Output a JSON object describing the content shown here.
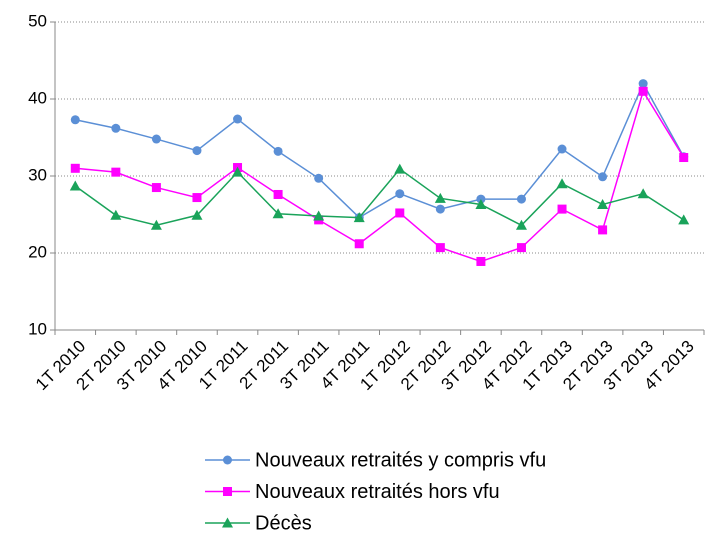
{
  "chart_data": {
    "type": "line",
    "categories": [
      "1T 2010",
      "2T 2010",
      "3T 2010",
      "4T 2010",
      "1T 2011",
      "2T 2011",
      "3T 2011",
      "4T 2011",
      "1T 2012",
      "2T 2012",
      "3T 2012",
      "4T 2012",
      "1T 2013",
      "2T 2013",
      "3T 2013",
      "4T 2013"
    ],
    "series": [
      {
        "name": "Nouveaux retraités y compris vfu",
        "color": "#5b8fd6",
        "marker": "circle",
        "values": [
          37.3,
          36.2,
          34.8,
          33.3,
          37.4,
          33.2,
          29.7,
          24.6,
          27.7,
          25.7,
          27.0,
          27.0,
          33.5,
          29.9,
          42.0,
          32.5
        ]
      },
      {
        "name": "Nouveaux retraités hors vfu",
        "color": "#ff00ff",
        "marker": "square",
        "values": [
          31.0,
          30.5,
          28.5,
          27.2,
          31.1,
          27.6,
          24.3,
          21.2,
          25.2,
          20.7,
          18.9,
          20.7,
          25.7,
          23.0,
          41.0,
          32.4
        ]
      },
      {
        "name": "Décès",
        "color": "#1aa35a",
        "marker": "triangle",
        "values": [
          28.7,
          24.9,
          23.6,
          24.9,
          30.5,
          25.1,
          24.8,
          24.6,
          30.9,
          27.1,
          26.3,
          23.6,
          29.0,
          26.3,
          27.7,
          24.3
        ]
      }
    ],
    "ylim": [
      10,
      50
    ],
    "yticks": [
      10,
      20,
      30,
      40,
      50
    ],
    "grid": true,
    "legend": "bottom"
  }
}
